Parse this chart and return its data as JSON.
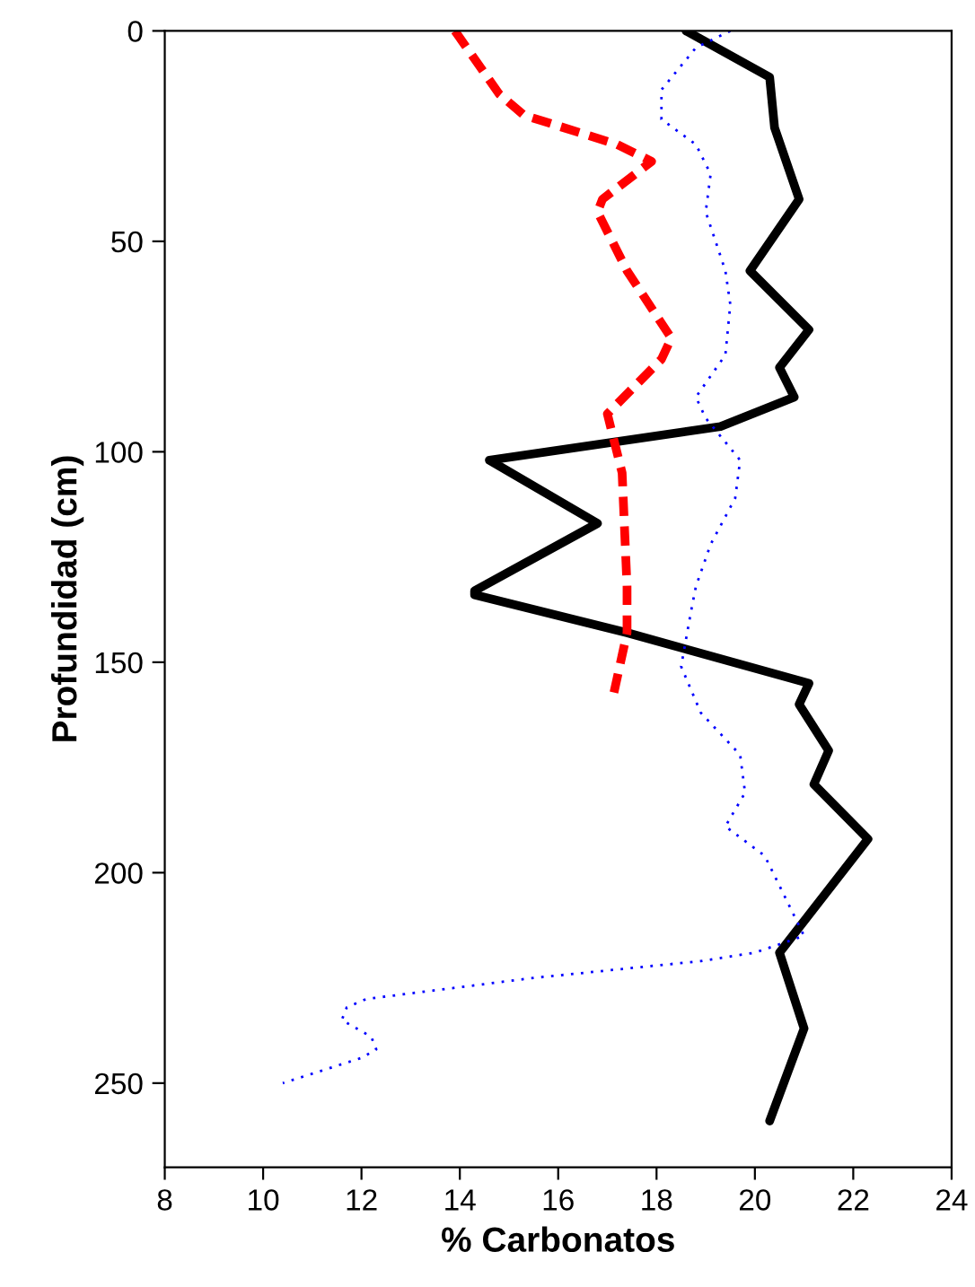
{
  "chart_data": {
    "type": "line",
    "xlabel": "% Carbonatos",
    "ylabel": "Profundidad (cm)",
    "xlim": [
      8,
      24
    ],
    "xticks": [
      8,
      10,
      12,
      14,
      16,
      18,
      20,
      22,
      24
    ],
    "ylim": [
      270,
      0
    ],
    "yticks": [
      0,
      50,
      100,
      150,
      200,
      250
    ],
    "grid": false,
    "legend": false,
    "marker": "none",
    "series": [
      {
        "color": "#000000",
        "line_style": "solid",
        "x": [
          18.6,
          20.3,
          20.4,
          20.9,
          19.9,
          21.1,
          20.5,
          20.8,
          19.3,
          14.6,
          16.8,
          14.3,
          14.3,
          17.4,
          21.1,
          20.9,
          21.5,
          21.2,
          22.3,
          20.5,
          21.0,
          20.3
        ],
        "values": [
          0,
          11,
          23,
          40,
          57,
          71,
          80,
          87,
          94,
          102,
          117,
          133,
          134,
          143,
          155,
          160,
          171,
          179,
          192,
          219,
          237,
          259
        ]
      },
      {
        "color": "#ff0000",
        "line_style": "dashed",
        "x": [
          13.9,
          14.8,
          15.3,
          17.2,
          17.9,
          16.9,
          16.8,
          17.4,
          18.3,
          18.1,
          17.0,
          17.3,
          17.4,
          17.4,
          17.1
        ],
        "values": [
          0,
          15,
          20,
          27,
          31,
          40,
          43,
          57,
          73,
          78,
          91,
          105,
          132,
          143,
          159
        ]
      },
      {
        "color": "#0000ff",
        "line_style": "dotted",
        "x": [
          19.5,
          18.8,
          18.1,
          18.1,
          18.8,
          19.1,
          19.0,
          19.4,
          19.5,
          19.4,
          18.8,
          19.0,
          19.7,
          19.6,
          19.1,
          18.8,
          18.7,
          18.5,
          18.9,
          19.7,
          19.8,
          19.4,
          20.2,
          21.0,
          20.0,
          18.9,
          15.5,
          12.1,
          11.7,
          11.6,
          12.2,
          12.3,
          12.0,
          10.4
        ],
        "values": [
          0,
          4,
          14,
          21,
          27,
          34,
          43,
          57,
          65,
          77,
          87,
          92,
          102,
          111,
          122,
          132,
          138,
          151,
          162,
          172,
          181,
          189,
          196,
          215,
          219,
          221,
          225,
          230,
          232,
          235,
          239,
          242,
          244,
          250
        ]
      }
    ]
  }
}
